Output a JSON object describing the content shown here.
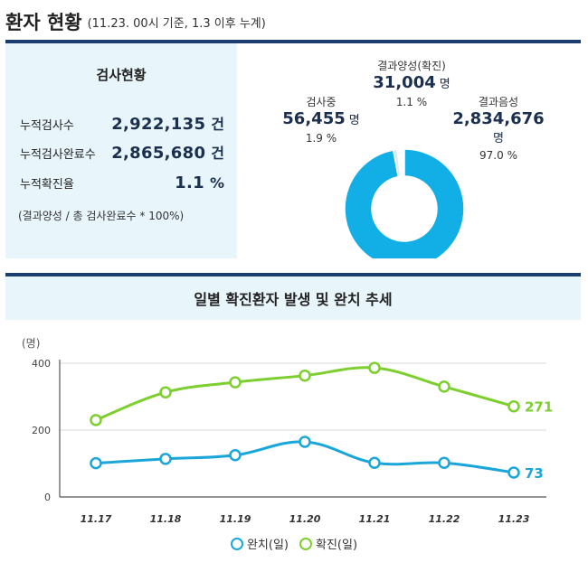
{
  "header": {
    "title": "환자 현황",
    "subtitle": "(11.23. 00시 기준, 1.3 이후 누계)"
  },
  "stats": {
    "title": "검사현황",
    "rows": [
      {
        "label": "누적검사수",
        "value": "2,922,135",
        "unit": "건"
      },
      {
        "label": "누적검사완료수",
        "value": "2,865,680",
        "unit": "건"
      },
      {
        "label": "누적확진율",
        "value": "1.1",
        "unit": "%"
      }
    ],
    "note": "(결과양성 / 총 검사완료수 * 100%)"
  },
  "pie": {
    "segments": [
      {
        "name": "결과양성(확진)",
        "value": "31,004",
        "unit": "명",
        "pct": "1.1 %",
        "share": 1.1,
        "color": "#dde6ee"
      },
      {
        "name": "검사중",
        "value": "56,455",
        "unit": "명",
        "pct": "1.9 %",
        "share": 1.9,
        "color": "#ffffff"
      },
      {
        "name": "결과음성",
        "value": "2,834,676",
        "unit": "명",
        "pct": "97.0 %",
        "share": 97.0,
        "color": "#12aee6"
      }
    ]
  },
  "chart_data": {
    "type": "line",
    "title": "일별 확진환자 발생 및 완치 추세",
    "ylabel": "(명)",
    "ylim": [
      0,
      400
    ],
    "yticks": [
      "0",
      "200",
      "400"
    ],
    "categories": [
      "11.17",
      "11.18",
      "11.19",
      "11.20",
      "11.21",
      "11.22",
      "11.23"
    ],
    "series": [
      {
        "name": "완치(일)",
        "values": [
          101,
          114,
          125,
          165,
          102,
          102,
          73
        ],
        "color": "#1aa6d8",
        "end_label": "73"
      },
      {
        "name": "확진(일)",
        "values": [
          230,
          313,
          343,
          363,
          386,
          330,
          271
        ],
        "color": "#7ccf2e",
        "end_label": "271"
      }
    ],
    "legend_position": "bottom"
  }
}
